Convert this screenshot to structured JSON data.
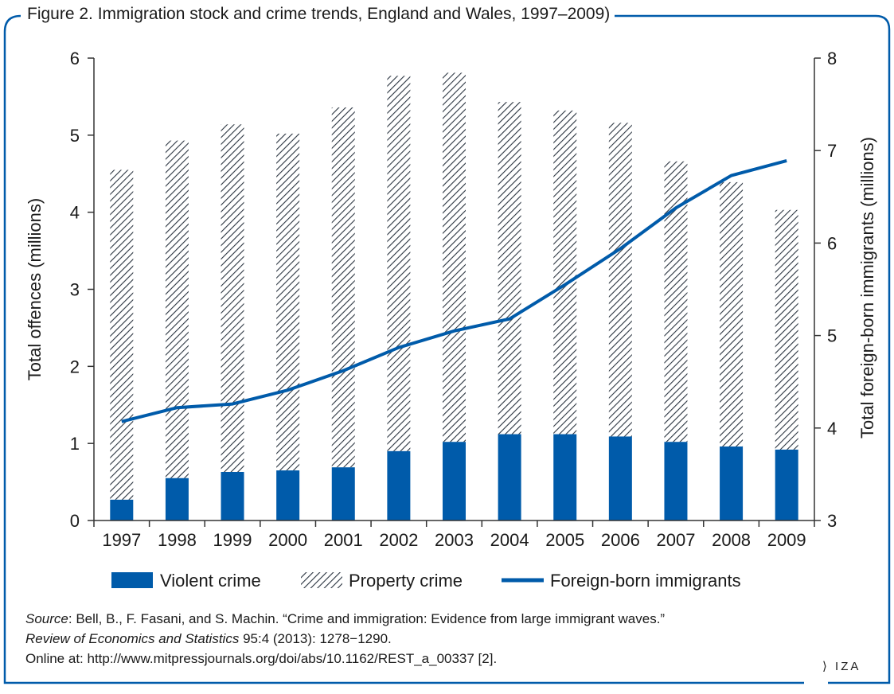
{
  "title": "Figure 2. Immigration stock and crime trends, England and Wales, 1997–2009)",
  "chart_data": {
    "type": "bar",
    "categories": [
      "1997",
      "1998",
      "1999",
      "2000",
      "2001",
      "2002",
      "2003",
      "2004",
      "2005",
      "2006",
      "2007",
      "2008",
      "2009"
    ],
    "series": [
      {
        "name": "Violent crime",
        "type": "bar-stacked",
        "axis": "left",
        "color": "#005baa",
        "values": [
          0.27,
          0.55,
          0.63,
          0.65,
          0.69,
          0.9,
          1.02,
          1.12,
          1.12,
          1.09,
          1.02,
          0.96,
          0.92
        ]
      },
      {
        "name": "Property crime",
        "type": "bar-stacked",
        "axis": "left",
        "pattern": "diagonal-hatch",
        "values": [
          4.28,
          4.38,
          4.51,
          4.37,
          4.67,
          4.87,
          4.79,
          4.31,
          4.2,
          4.07,
          3.64,
          3.43,
          3.11
        ]
      },
      {
        "name": "Foreign-born immigrants",
        "type": "line",
        "axis": "right",
        "color": "#005baa",
        "values": [
          4.07,
          4.22,
          4.26,
          4.41,
          4.62,
          4.87,
          5.05,
          5.18,
          5.55,
          5.94,
          6.38,
          6.73,
          6.89
        ]
      }
    ],
    "ylabel_left": "Total offences (millions)",
    "ylabel_right": "Total foreign-born immigrants (millions)",
    "ylim_left": [
      0,
      6
    ],
    "ylim_right": [
      3,
      8
    ],
    "yticks_left": [
      "0",
      "1",
      "2",
      "3",
      "4",
      "5",
      "6"
    ],
    "yticks_right": [
      "3",
      "4",
      "5",
      "6",
      "7",
      "8"
    ],
    "legend_position": "bottom",
    "grid": false
  },
  "source": {
    "label": "Source",
    "line1": ": Bell, B., F. Fasani, and S. Machin. “Crime and immigration: Evidence from large immigrant waves.”",
    "journal": "Review of Economics and Statistics",
    "line2": " 95:4 (2013): 1278−1290.",
    "line3": "Online at: http://www.mitpressjournals.org/doi/abs/10.1162/REST_a_00337 [2]."
  },
  "logo_text": "IZA",
  "colors": {
    "accent": "#005baa",
    "frame": "#005baa",
    "hatch": "#2a3440"
  }
}
